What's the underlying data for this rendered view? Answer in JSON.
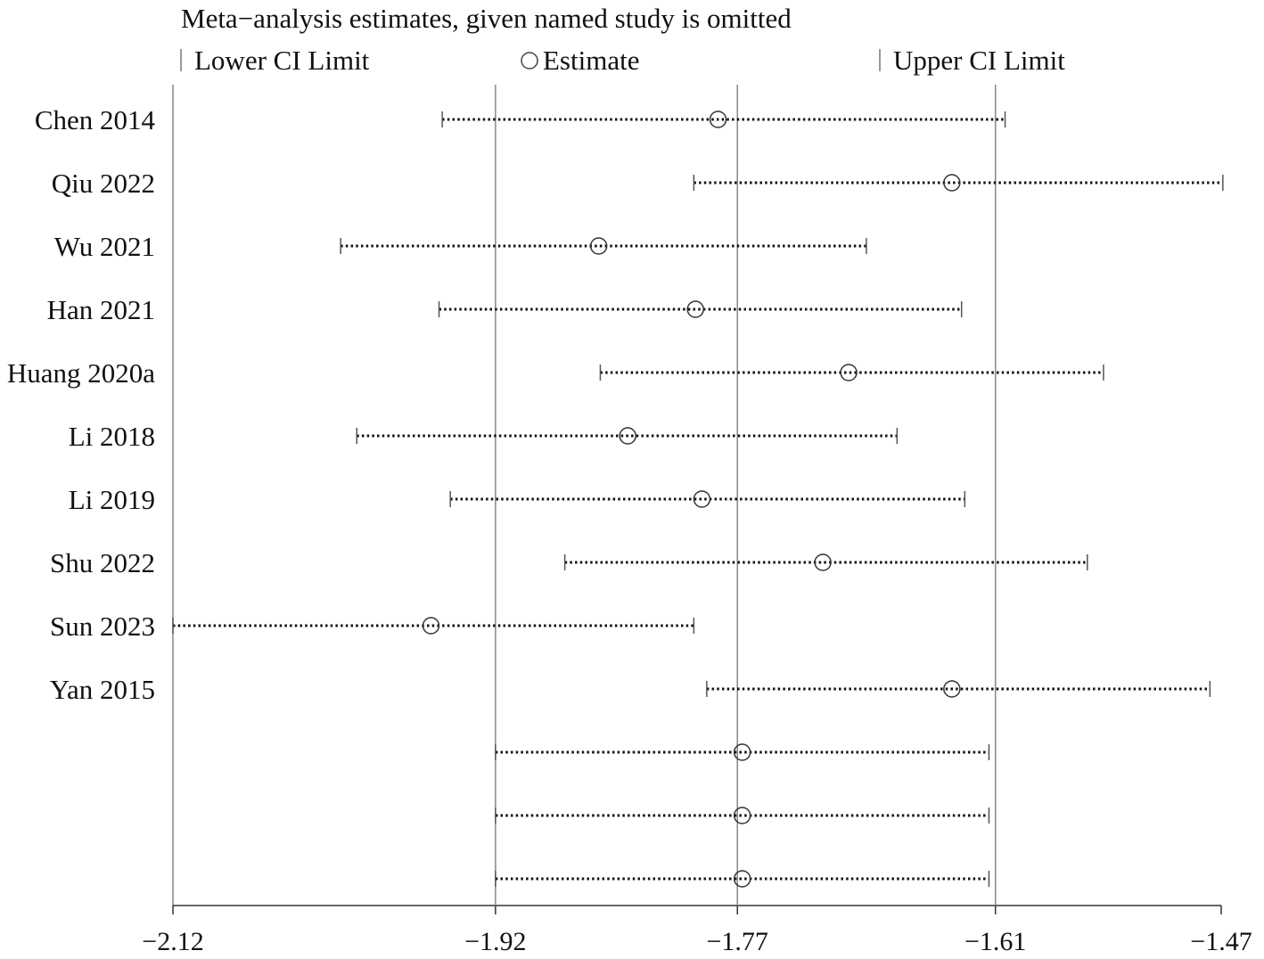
{
  "chart_data": {
    "type": "forest",
    "title": "Meta−analysis estimates, given named study is omitted",
    "legend": {
      "lower_label": "Lower CI Limit",
      "estimate_label": "Estimate",
      "upper_label": "Upper CI Limit"
    },
    "xlim": [
      -2.12,
      -1.47
    ],
    "xticks": [
      -2.12,
      -1.92,
      -1.77,
      -1.61,
      -1.47
    ],
    "xtick_labels": [
      "−2.12",
      "−1.92",
      "−1.77",
      "−1.61",
      "−1.47"
    ],
    "reference_lines": [
      -1.92,
      -1.77,
      -1.61
    ],
    "rows": [
      {
        "label": "Chen 2014",
        "lower": -1.953,
        "estimate": -1.782,
        "upper": -1.604
      },
      {
        "label": "Qiu 2022",
        "lower": -1.797,
        "estimate": -1.637,
        "upper": -1.469
      },
      {
        "label": "Wu 2021",
        "lower": -2.016,
        "estimate": -1.856,
        "upper": -1.69
      },
      {
        "label": "Han 2021",
        "lower": -1.955,
        "estimate": -1.796,
        "upper": -1.631
      },
      {
        "label": "Huang 2020a",
        "lower": -1.855,
        "estimate": -1.701,
        "upper": -1.543
      },
      {
        "label": "Li 2018",
        "lower": -2.006,
        "estimate": -1.838,
        "upper": -1.671
      },
      {
        "label": "Li 2019",
        "lower": -1.948,
        "estimate": -1.792,
        "upper": -1.629
      },
      {
        "label": "Shu 2022",
        "lower": -1.877,
        "estimate": -1.717,
        "upper": -1.553
      },
      {
        "label": "Sun 2023",
        "lower": -2.12,
        "estimate": -1.96,
        "upper": -1.797
      },
      {
        "label": "Yan 2015",
        "lower": -1.789,
        "estimate": -1.637,
        "upper": -1.477
      },
      {
        "label": "",
        "lower": -1.92,
        "estimate": -1.767,
        "upper": -1.614
      },
      {
        "label": "",
        "lower": -1.92,
        "estimate": -1.767,
        "upper": -1.614
      },
      {
        "label": "",
        "lower": -1.92,
        "estimate": -1.767,
        "upper": -1.614
      }
    ],
    "grid": false,
    "legend_placement": "top"
  }
}
